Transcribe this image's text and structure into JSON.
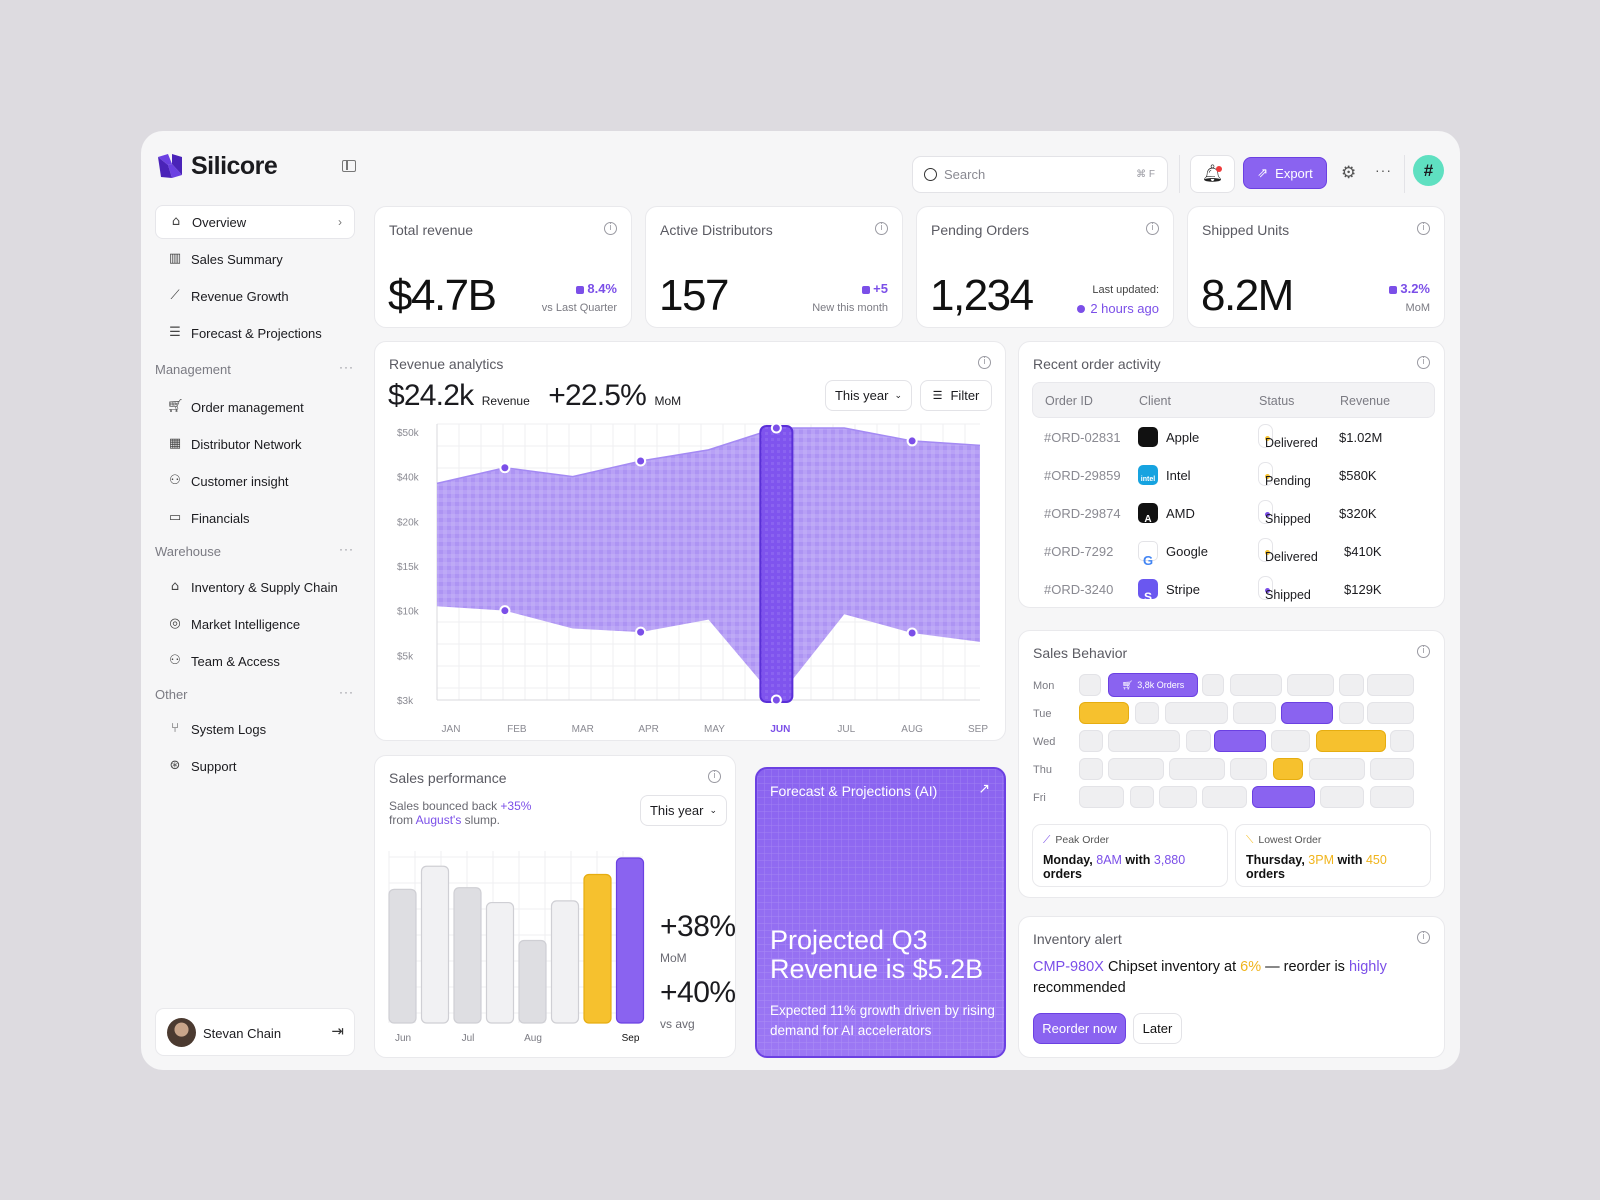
{
  "app": {
    "name": "Silicore"
  },
  "sidebar": {
    "items": [
      {
        "label": "Overview",
        "icon": "home-icon"
      },
      {
        "label": "Sales Summary",
        "icon": "bar-chart-icon"
      },
      {
        "label": "Revenue Growth",
        "icon": "trend-line-icon"
      },
      {
        "label": "Forecast & Projections",
        "icon": "list-star-icon"
      }
    ],
    "management_label": "Management",
    "management": [
      {
        "label": "Order management",
        "icon": "cart-icon"
      },
      {
        "label": "Distributor Network",
        "icon": "building-icon"
      },
      {
        "label": "Customer insight",
        "icon": "users-icon"
      },
      {
        "label": "Financials",
        "icon": "money-icon"
      }
    ],
    "warehouse_label": "Warehouse",
    "warehouse": [
      {
        "label": "Inventory & Supply Chain",
        "icon": "warehouse-icon"
      },
      {
        "label": "Market Intelligence",
        "icon": "globe-icon"
      },
      {
        "label": "Team & Access",
        "icon": "team-icon"
      }
    ],
    "other_label": "Other",
    "other": [
      {
        "label": "System Logs",
        "icon": "logs-icon"
      },
      {
        "label": "Support",
        "icon": "lifebuoy-icon"
      }
    ],
    "user": {
      "name": "Stevan Chain"
    }
  },
  "header": {
    "search_placeholder": "Search",
    "search_shortcut": "⌘ F",
    "export_label": "Export"
  },
  "kpis": [
    {
      "title": "Total revenue",
      "value": "$4.7B",
      "change": "8.4%",
      "sub": "vs Last Quarter"
    },
    {
      "title": "Active Distributors",
      "value": "157",
      "change": "+5",
      "sub": "New this month"
    },
    {
      "title": "Pending Orders",
      "value": "1,234",
      "sub_label": "Last updated:",
      "sub_value": "2 hours ago"
    },
    {
      "title": "Shipped Units",
      "value": "8.2M",
      "change": "3.2%",
      "sub": "MoM"
    }
  ],
  "revenue": {
    "title": "Revenue analytics",
    "amount": "$24.2k",
    "amount_label": "Revenue",
    "growth": "+22.5%",
    "growth_label": "MoM",
    "period": "This year",
    "filter": "Filter"
  },
  "chart_data": {
    "type": "area",
    "title": "Revenue analytics",
    "categories": [
      "JAN",
      "FEB",
      "MAR",
      "APR",
      "MAY",
      "JUN",
      "JUL",
      "AUG",
      "SEP"
    ],
    "y_ticks": [
      "$50k",
      "$40k",
      "$20k",
      "$15k",
      "$10k",
      "$5k",
      "$3k"
    ],
    "highlighted": "JUN",
    "series": [
      {
        "values": [
          37000,
          42000,
          40000,
          43500,
          46000,
          51000,
          51000,
          48000,
          47000
        ]
      },
      {
        "values": [
          10500,
          10000,
          8000,
          7600,
          9000,
          3000,
          9600,
          7500,
          6500
        ]
      }
    ],
    "grid": true
  },
  "orders": {
    "title": "Recent order activity",
    "columns": [
      "Order ID",
      "Client",
      "Status",
      "Revenue"
    ],
    "rows": [
      {
        "id": "#ORD-02831",
        "client": "Apple",
        "status": "Delivered",
        "revenue": "$1.02M"
      },
      {
        "id": "#ORD-29859",
        "client": "Intel",
        "status": "Pending",
        "revenue": "$580K"
      },
      {
        "id": "#ORD-29874",
        "client": "AMD",
        "status": "Shipped",
        "revenue": "$320K"
      },
      {
        "id": "#ORD-7292",
        "client": "Google",
        "status": "Delivered",
        "revenue": "$410K"
      },
      {
        "id": "#ORD-3240",
        "client": "Stripe",
        "status": "Shipped",
        "revenue": "$129K"
      }
    ],
    "logo_text": {
      "intel": "intel",
      "amd": "A",
      "google": "G",
      "stripe": "S"
    }
  },
  "sales_perf": {
    "title": "Sales performance",
    "line1_pre": "Sales bounced back ",
    "line1_hl": "+35%",
    "line2_pre": "from ",
    "line2_hl": "August's",
    "line2_post": " slump.",
    "period": "This year",
    "bar_labels": [
      "Jun",
      "Jul",
      "Aug",
      "Sep"
    ],
    "bars": [
      0.81,
      0.95,
      0.82,
      0.73,
      0.5,
      0.74,
      0.9,
      1.0
    ],
    "mom": "+38%",
    "mom_label": "MoM",
    "avg": "+40%",
    "avg_label": "vs avg"
  },
  "forecast": {
    "title": "Forecast & Projections (AI)",
    "headline": "Projected Q3 Revenue is $5.2B",
    "sub": "Expected 11% growth driven by rising demand for AI accelerators"
  },
  "behavior": {
    "title": "Sales Behavior",
    "days": [
      "Mon",
      "Tue",
      "Wed",
      "Thu",
      "Fri"
    ],
    "badge": "3,8k Orders",
    "peak_title": "Peak Order",
    "peak_a": "Monday, ",
    "peak_b": "8AM",
    "peak_c": " with ",
    "peak_d": "3,880",
    "peak_e": "orders",
    "low_title": "Lowest Order",
    "low_a": "Thursday, ",
    "low_b": "3PM",
    "low_c": " with ",
    "low_d": "450",
    "low_e": "orders"
  },
  "inventory": {
    "title": "Inventory alert",
    "code": "CMP-980X",
    "t1": " Chipset inventory at ",
    "pct": "6%",
    "t2": " — reorder is ",
    "hl": "highly",
    "t3": "recommended",
    "reorder": "Reorder now",
    "later": "Later"
  },
  "colors": {
    "accent": "#7b4fe8",
    "yellow": "#f6c12e",
    "teal": "#5fe0c1"
  }
}
